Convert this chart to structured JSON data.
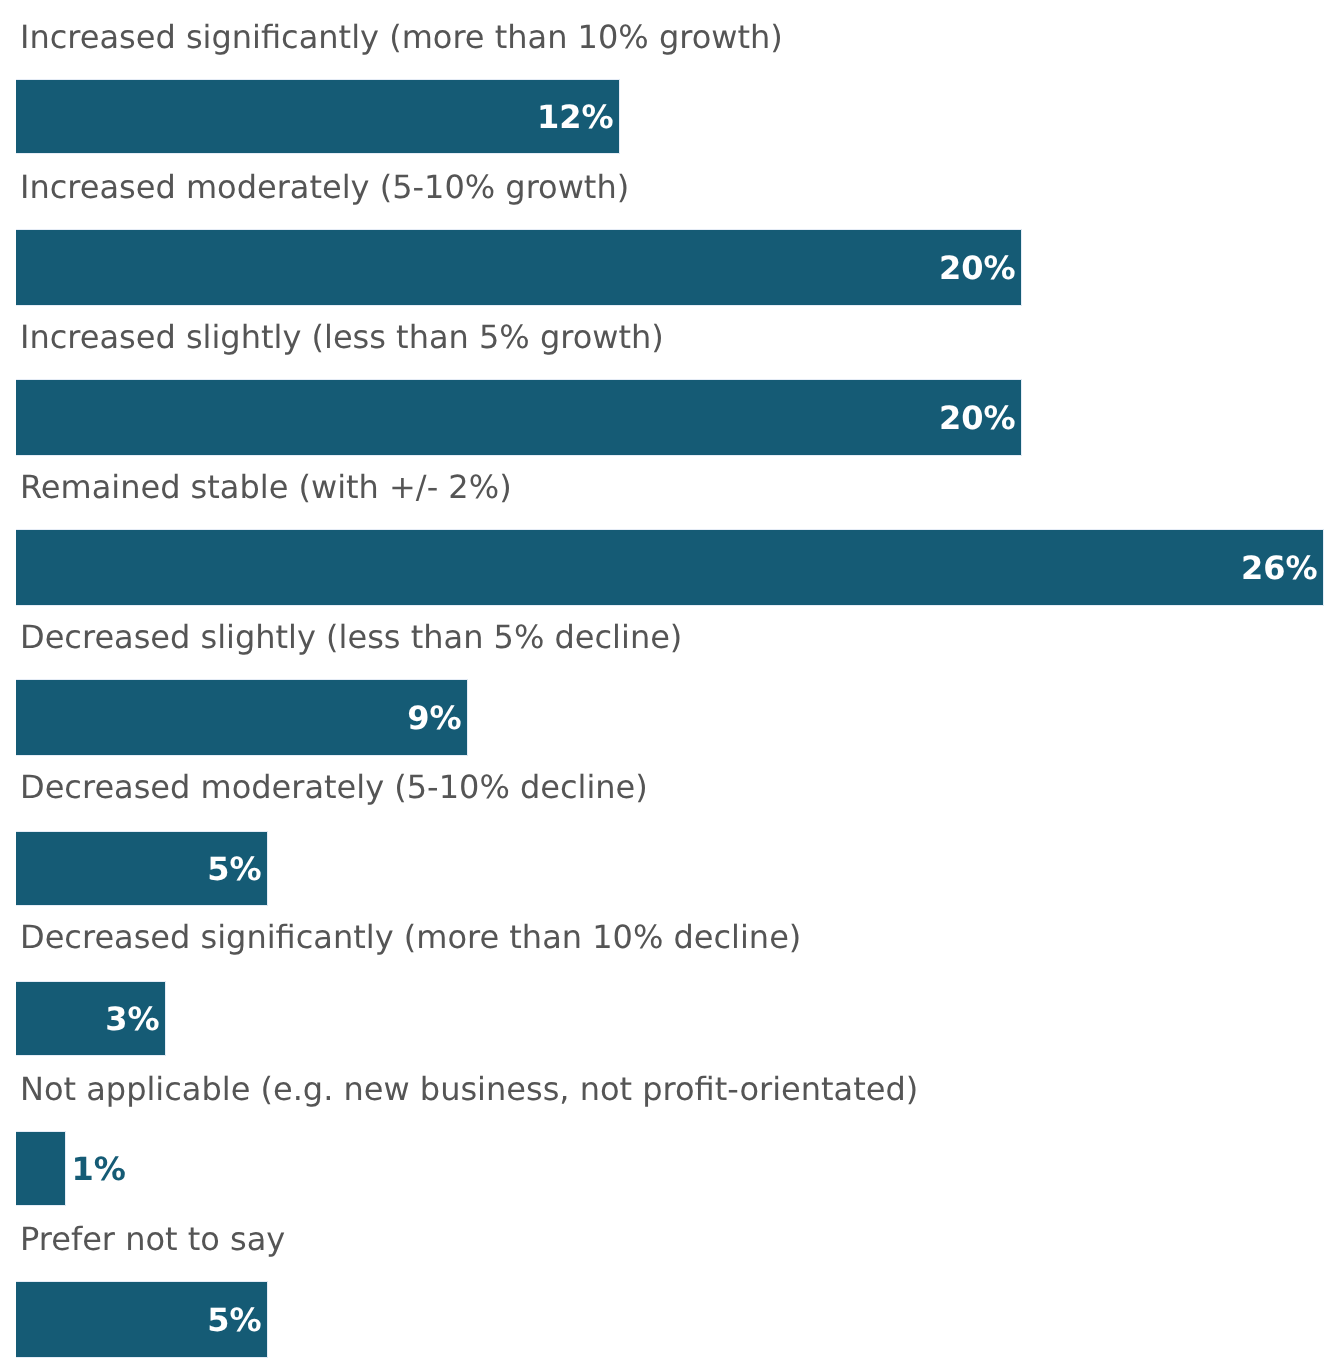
{
  "chart_data": {
    "type": "bar",
    "orientation": "horizontal",
    "categories": [
      "Increased significantly (more than 10% growth)",
      "Increased moderately (5-10% growth)",
      "Increased slightly (less than 5% growth)",
      "Remained stable (with +/- 2%)",
      "Decreased slightly (less than 5% decline)",
      "Decreased moderately (5-10% decline)",
      "Decreased significantly (more than 10% decline)",
      "Not applicable (e.g. new business, not profit-orientated)",
      "Prefer not to say"
    ],
    "values": [
      12,
      20,
      20,
      26,
      9,
      5,
      3,
      1,
      5
    ],
    "value_labels": [
      "12%",
      "20%",
      "20%",
      "26%",
      "9%",
      "5%",
      "3%",
      "1%",
      "5%"
    ],
    "color": "#155b75",
    "legend": false
  }
}
